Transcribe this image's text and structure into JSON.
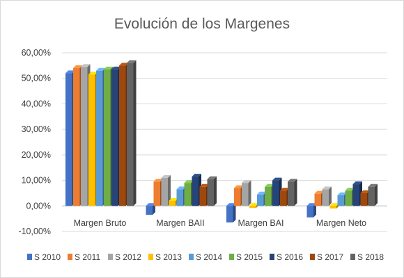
{
  "chart_data": {
    "type": "bar",
    "title": "Evolución de los Margenes",
    "categories": [
      "Margen Bruto",
      "Margen BAII",
      "Margen BAI",
      "Margen Neto"
    ],
    "y_ticks": [
      "-10,00%",
      "0,00%",
      "10,00%",
      "20,00%",
      "30,00%",
      "40,00%",
      "50,00%",
      "60,00%"
    ],
    "ylim": [
      -10,
      60
    ],
    "y_unit": "%",
    "grid": true,
    "legend_position": "bottom",
    "style": "3d-clustered-columns",
    "series": [
      {
        "name": "S 2010",
        "color": "#4472C4",
        "values": [
          52.0,
          -3.5,
          -6.5,
          -4.5
        ]
      },
      {
        "name": "S 2011",
        "color": "#ED7D31",
        "values": [
          54.0,
          9.5,
          7.0,
          4.8
        ]
      },
      {
        "name": "S 2012",
        "color": "#A5A5A5",
        "values": [
          54.5,
          11.0,
          9.0,
          6.5
        ]
      },
      {
        "name": "S 2013",
        "color": "#FFC000",
        "values": [
          51.5,
          2.0,
          -0.8,
          -1.0
        ]
      },
      {
        "name": "S 2014",
        "color": "#5B9BD5",
        "values": [
          53.0,
          6.5,
          4.5,
          4.2
        ]
      },
      {
        "name": "S 2015",
        "color": "#70AD47",
        "values": [
          53.5,
          9.0,
          7.5,
          6.0
        ]
      },
      {
        "name": "S 2016",
        "color": "#264478",
        "values": [
          53.5,
          11.5,
          10.0,
          8.5
        ]
      },
      {
        "name": "S 2017",
        "color": "#9E480E",
        "values": [
          55.0,
          7.5,
          6.0,
          5.0
        ]
      },
      {
        "name": "S 2018",
        "color": "#636363",
        "values": [
          56.0,
          10.5,
          9.5,
          7.5
        ]
      }
    ]
  }
}
